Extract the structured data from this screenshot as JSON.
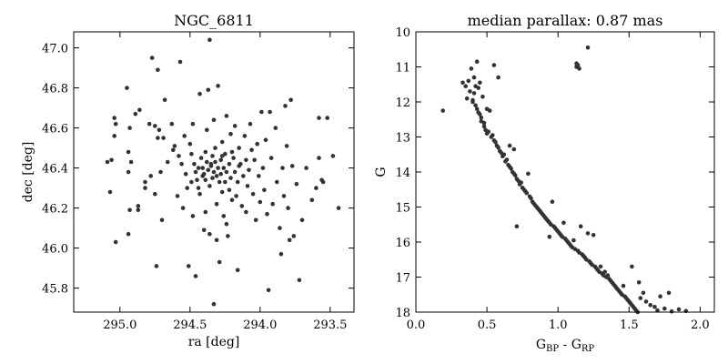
{
  "chart_data": [
    {
      "type": "scatter",
      "title": "NGC_6811",
      "xlabel": "ra [deg]",
      "ylabel": "dec [deg]",
      "xlim": [
        295.33,
        293.33
      ],
      "ylim": [
        45.68,
        47.08
      ],
      "x_ticks": [
        "295.0",
        "294.5",
        "294.0",
        "293.5"
      ],
      "y_ticks": [
        "45.8",
        "46.0",
        "46.2",
        "46.4",
        "46.6",
        "46.8",
        "47.0"
      ],
      "x_inverted": true,
      "grid": false,
      "point_color": "#333333",
      "points": [
        [
          295.09,
          46.43
        ],
        [
          295.06,
          46.44
        ],
        [
          295.07,
          46.28
        ],
        [
          295.04,
          46.65
        ],
        [
          295.03,
          46.62
        ],
        [
          295.04,
          46.56
        ],
        [
          295.03,
          46.03
        ],
        [
          294.95,
          46.8
        ],
        [
          294.93,
          46.6
        ],
        [
          294.94,
          46.48
        ],
        [
          294.92,
          46.43
        ],
        [
          294.94,
          46.38
        ],
        [
          294.93,
          46.19
        ],
        [
          294.94,
          46.07
        ],
        [
          294.89,
          46.67
        ],
        [
          294.86,
          46.69
        ],
        [
          294.87,
          46.21
        ],
        [
          294.87,
          46.19
        ],
        [
          294.82,
          46.33
        ],
        [
          294.82,
          46.3
        ],
        [
          294.79,
          46.62
        ],
        [
          294.78,
          46.36
        ],
        [
          294.77,
          46.95
        ],
        [
          294.75,
          46.61
        ],
        [
          294.75,
          46.27
        ],
        [
          294.73,
          46.89
        ],
        [
          294.73,
          46.55
        ],
        [
          294.74,
          45.91
        ],
        [
          294.72,
          46.59
        ],
        [
          294.71,
          46.38
        ],
        [
          294.7,
          46.14
        ],
        [
          294.68,
          46.74
        ],
        [
          294.69,
          46.55
        ],
        [
          294.66,
          46.43
        ],
        [
          294.63,
          46.62
        ],
        [
          294.62,
          46.49
        ],
        [
          294.61,
          46.51
        ],
        [
          294.59,
          46.26
        ],
        [
          294.57,
          46.93
        ],
        [
          294.58,
          46.46
        ],
        [
          294.56,
          46.42
        ],
        [
          294.55,
          46.2
        ],
        [
          294.54,
          46.56
        ],
        [
          294.53,
          46.37
        ],
        [
          294.52,
          46.3
        ],
        [
          294.51,
          45.91
        ],
        [
          294.5,
          46.52
        ],
        [
          294.49,
          46.47
        ],
        [
          294.49,
          46.33
        ],
        [
          294.48,
          46.62
        ],
        [
          294.48,
          46.16
        ],
        [
          294.47,
          46.42
        ],
        [
          294.46,
          46.38
        ],
        [
          294.46,
          45.86
        ],
        [
          294.44,
          46.4
        ],
        [
          294.44,
          46.3
        ],
        [
          294.43,
          46.77
        ],
        [
          294.43,
          46.27
        ],
        [
          294.42,
          46.45
        ],
        [
          294.41,
          46.4
        ],
        [
          294.41,
          46.36
        ],
        [
          294.4,
          46.37
        ],
        [
          294.4,
          46.09
        ],
        [
          294.39,
          46.48
        ],
        [
          294.39,
          46.34
        ],
        [
          294.38,
          46.43
        ],
        [
          294.38,
          46.59
        ],
        [
          294.37,
          46.79
        ],
        [
          294.37,
          46.39
        ],
        [
          294.36,
          46.31
        ],
        [
          294.36,
          46.07
        ],
        [
          294.35,
          46.42
        ],
        [
          294.35,
          46.41
        ],
        [
          294.34,
          46.46
        ],
        [
          294.34,
          46.35
        ],
        [
          294.33,
          46.38
        ],
        [
          294.33,
          46.64
        ],
        [
          294.32,
          46.5
        ],
        [
          294.32,
          46.43
        ],
        [
          294.31,
          46.36
        ],
        [
          294.31,
          46.04
        ],
        [
          294.3,
          46.81
        ],
        [
          294.3,
          46.4
        ],
        [
          294.29,
          46.33
        ],
        [
          294.29,
          45.93
        ],
        [
          294.28,
          46.44
        ],
        [
          294.28,
          46.37
        ],
        [
          294.27,
          46.28
        ],
        [
          294.27,
          46.53
        ],
        [
          294.26,
          46.4
        ],
        [
          294.26,
          46.16
        ],
        [
          294.25,
          46.47
        ],
        [
          294.25,
          46.33
        ],
        [
          294.24,
          46.66
        ],
        [
          294.24,
          46.38
        ],
        [
          294.23,
          46.06
        ],
        [
          294.22,
          46.42
        ],
        [
          294.22,
          46.29
        ],
        [
          294.21,
          46.57
        ],
        [
          294.21,
          46.35
        ],
        [
          294.2,
          46.24
        ],
        [
          294.19,
          46.45
        ],
        [
          294.18,
          46.61
        ],
        [
          294.18,
          46.38
        ],
        [
          294.17,
          46.26
        ],
        [
          294.16,
          46.33
        ],
        [
          294.16,
          45.89
        ],
        [
          294.15,
          46.5
        ],
        [
          294.15,
          46.41
        ],
        [
          294.14,
          46.42
        ],
        [
          294.13,
          46.21
        ],
        [
          294.12,
          46.36
        ],
        [
          294.11,
          46.56
        ],
        [
          294.1,
          46.44
        ],
        [
          294.1,
          46.18
        ],
        [
          294.09,
          46.31
        ],
        [
          294.08,
          46.39
        ],
        [
          294.07,
          46.62
        ],
        [
          294.06,
          46.49
        ],
        [
          294.05,
          46.27
        ],
        [
          294.04,
          46.44
        ],
        [
          294.03,
          46.14
        ],
        [
          294.02,
          46.52
        ],
        [
          294.01,
          46.36
        ],
        [
          294.0,
          46.23
        ],
        [
          293.99,
          46.68
        ],
        [
          293.98,
          46.4
        ],
        [
          293.97,
          46.29
        ],
        [
          293.96,
          46.54
        ],
        [
          293.95,
          46.17
        ],
        [
          293.94,
          45.79
        ],
        [
          293.93,
          46.68
        ],
        [
          293.92,
          46.45
        ],
        [
          293.91,
          46.22
        ],
        [
          293.89,
          46.6
        ],
        [
          293.88,
          46.33
        ],
        [
          293.86,
          46.1
        ],
        [
          293.85,
          45.97
        ],
        [
          293.84,
          46.4
        ],
        [
          293.83,
          46.26
        ],
        [
          293.82,
          46.71
        ],
        [
          293.81,
          46.51
        ],
        [
          293.8,
          46.2
        ],
        [
          293.79,
          46.04
        ],
        [
          293.78,
          46.74
        ],
        [
          293.77,
          46.41
        ],
        [
          293.76,
          46.06
        ],
        [
          293.74,
          46.32
        ],
        [
          293.72,
          45.84
        ],
        [
          293.7,
          46.14
        ],
        [
          293.67,
          46.4
        ],
        [
          293.63,
          46.24
        ],
        [
          293.6,
          46.3
        ],
        [
          293.58,
          46.65
        ],
        [
          293.58,
          46.45
        ],
        [
          293.56,
          46.34
        ],
        [
          293.55,
          46.33
        ],
        [
          293.52,
          46.65
        ],
        [
          293.48,
          46.46
        ],
        [
          293.44,
          46.2
        ],
        [
          294.36,
          47.04
        ],
        [
          294.33,
          45.72
        ],
        [
          294.24,
          46.12
        ],
        [
          294.45,
          46.34
        ],
        [
          294.39,
          46.18
        ],
        [
          294.31,
          46.22
        ],
        [
          294.27,
          46.46
        ],
        [
          294.2,
          46.48
        ]
      ]
    },
    {
      "type": "scatter",
      "title": "median parallax: 0.87 mas",
      "xlabel_main": "G",
      "xlabel_sub1": "BP",
      "xlabel_mid": " - G",
      "xlabel_sub2": "RP",
      "ylabel": "G",
      "xlim": [
        0.0,
        2.1
      ],
      "ylim": [
        18.0,
        10.0
      ],
      "x_ticks": [
        "0.0",
        "0.5",
        "1.0",
        "1.5",
        "2.0"
      ],
      "y_ticks": [
        "10",
        "11",
        "12",
        "13",
        "14",
        "15",
        "16",
        "17",
        "18"
      ],
      "y_inverted": true,
      "grid": false,
      "point_color": "#333333",
      "points": [
        [
          0.19,
          12.25
        ],
        [
          0.33,
          11.45
        ],
        [
          0.35,
          11.55
        ],
        [
          0.36,
          11.9
        ],
        [
          0.37,
          11.4
        ],
        [
          0.38,
          11.7
        ],
        [
          0.39,
          11.05
        ],
        [
          0.4,
          11.95
        ],
        [
          0.4,
          12.0
        ],
        [
          0.41,
          11.3
        ],
        [
          0.41,
          11.75
        ],
        [
          0.42,
          12.1
        ],
        [
          0.42,
          11.55
        ],
        [
          0.43,
          12.2
        ],
        [
          0.43,
          10.85
        ],
        [
          0.44,
          12.3
        ],
        [
          0.44,
          11.6
        ],
        [
          0.45,
          12.35
        ],
        [
          0.45,
          11.45
        ],
        [
          0.46,
          12.55
        ],
        [
          0.46,
          12.45
        ],
        [
          0.47,
          11.85
        ],
        [
          0.48,
          12.7
        ],
        [
          0.48,
          12.6
        ],
        [
          0.49,
          12.8
        ],
        [
          0.5,
          12.2
        ],
        [
          0.5,
          12.9
        ],
        [
          0.51,
          12.85
        ],
        [
          0.52,
          12.25
        ],
        [
          0.53,
          13.0
        ],
        [
          0.54,
          12.95
        ],
        [
          0.55,
          10.95
        ],
        [
          0.55,
          13.1
        ],
        [
          0.56,
          13.15
        ],
        [
          0.57,
          13.25
        ],
        [
          0.58,
          13.3
        ],
        [
          0.58,
          11.3
        ],
        [
          0.59,
          13.4
        ],
        [
          0.6,
          13.45
        ],
        [
          0.61,
          13.55
        ],
        [
          0.62,
          13.5
        ],
        [
          0.63,
          13.7
        ],
        [
          0.64,
          13.65
        ],
        [
          0.65,
          13.8
        ],
        [
          0.66,
          13.25
        ],
        [
          0.66,
          13.85
        ],
        [
          0.67,
          13.9
        ],
        [
          0.68,
          14.0
        ],
        [
          0.69,
          13.35
        ],
        [
          0.69,
          14.05
        ],
        [
          0.7,
          14.1
        ],
        [
          0.71,
          14.2
        ],
        [
          0.71,
          15.55
        ],
        [
          0.72,
          14.25
        ],
        [
          0.73,
          14.35
        ],
        [
          0.74,
          14.3
        ],
        [
          0.75,
          14.45
        ],
        [
          0.76,
          14.5
        ],
        [
          0.77,
          14.55
        ],
        [
          0.78,
          14.6
        ],
        [
          0.79,
          14.05
        ],
        [
          0.8,
          14.7
        ],
        [
          0.81,
          14.75
        ],
        [
          0.82,
          14.85
        ],
        [
          0.83,
          14.9
        ],
        [
          0.84,
          14.95
        ],
        [
          0.85,
          15.0
        ],
        [
          0.86,
          15.05
        ],
        [
          0.87,
          15.1
        ],
        [
          0.88,
          15.15
        ],
        [
          0.89,
          15.2
        ],
        [
          0.9,
          15.25
        ],
        [
          0.91,
          15.3
        ],
        [
          0.92,
          15.35
        ],
        [
          0.93,
          15.4
        ],
        [
          0.94,
          15.85
        ],
        [
          0.94,
          15.45
        ],
        [
          0.95,
          15.5
        ],
        [
          0.96,
          14.85
        ],
        [
          0.97,
          15.55
        ],
        [
          0.98,
          15.6
        ],
        [
          0.99,
          15.65
        ],
        [
          1.0,
          15.7
        ],
        [
          1.01,
          15.75
        ],
        [
          1.02,
          15.8
        ],
        [
          1.03,
          15.85
        ],
        [
          1.04,
          15.45
        ],
        [
          1.05,
          15.9
        ],
        [
          1.06,
          15.95
        ],
        [
          1.07,
          16.0
        ],
        [
          1.08,
          16.05
        ],
        [
          1.09,
          16.1
        ],
        [
          1.1,
          16.15
        ],
        [
          1.11,
          15.95
        ],
        [
          1.12,
          16.2
        ],
        [
          1.13,
          10.9
        ],
        [
          1.13,
          11.0
        ],
        [
          1.14,
          10.95
        ],
        [
          1.14,
          16.25
        ],
        [
          1.15,
          11.05
        ],
        [
          1.15,
          16.3
        ],
        [
          1.16,
          15.55
        ],
        [
          1.17,
          16.35
        ],
        [
          1.18,
          16.4
        ],
        [
          1.19,
          16.45
        ],
        [
          1.2,
          16.5
        ],
        [
          1.21,
          10.45
        ],
        [
          1.21,
          15.75
        ],
        [
          1.22,
          16.55
        ],
        [
          1.23,
          16.6
        ],
        [
          1.24,
          16.65
        ],
        [
          1.25,
          15.8
        ],
        [
          1.26,
          16.7
        ],
        [
          1.27,
          16.75
        ],
        [
          1.28,
          16.8
        ],
        [
          1.29,
          16.85
        ],
        [
          1.3,
          16.7
        ],
        [
          1.31,
          16.9
        ],
        [
          1.32,
          16.95
        ],
        [
          1.33,
          16.85
        ],
        [
          1.34,
          17.0
        ],
        [
          1.35,
          16.95
        ],
        [
          1.36,
          17.05
        ],
        [
          1.37,
          17.1
        ],
        [
          1.38,
          17.15
        ],
        [
          1.39,
          17.2
        ],
        [
          1.4,
          17.25
        ],
        [
          1.41,
          17.3
        ],
        [
          1.42,
          17.35
        ],
        [
          1.43,
          17.4
        ],
        [
          1.44,
          17.45
        ],
        [
          1.45,
          17.5
        ],
        [
          1.46,
          17.25
        ],
        [
          1.47,
          17.55
        ],
        [
          1.48,
          17.6
        ],
        [
          1.49,
          17.65
        ],
        [
          1.5,
          17.7
        ],
        [
          1.51,
          17.75
        ],
        [
          1.52,
          16.7
        ],
        [
          1.52,
          17.8
        ],
        [
          1.53,
          17.85
        ],
        [
          1.54,
          17.9
        ],
        [
          1.55,
          17.95
        ],
        [
          1.56,
          18.0
        ],
        [
          1.57,
          17.15
        ],
        [
          1.58,
          17.6
        ],
        [
          1.6,
          17.45
        ],
        [
          1.62,
          17.7
        ],
        [
          1.65,
          17.8
        ],
        [
          1.68,
          17.85
        ],
        [
          1.7,
          17.95
        ],
        [
          1.72,
          17.55
        ],
        [
          1.75,
          17.9
        ],
        [
          1.78,
          17.45
        ],
        [
          1.8,
          17.98
        ],
        [
          1.85,
          17.92
        ],
        [
          1.9,
          17.97
        ]
      ]
    }
  ]
}
